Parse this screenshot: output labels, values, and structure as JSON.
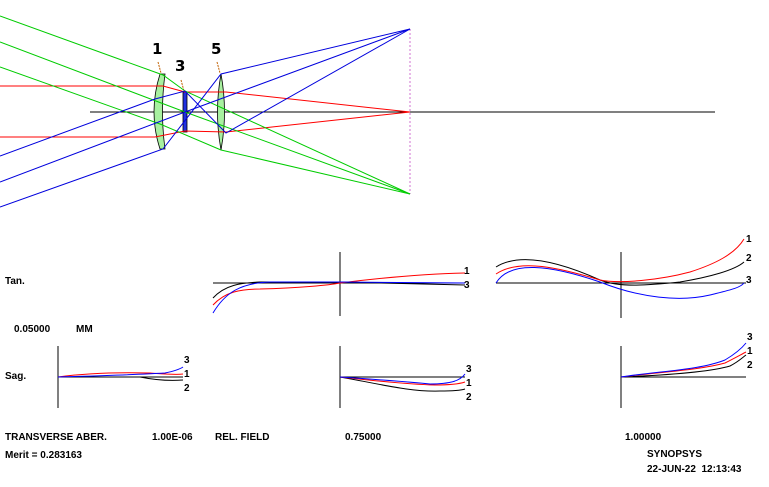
{
  "layout": {
    "surface_labels": [
      "1",
      "3",
      "5"
    ]
  },
  "aberrations": {
    "tan_label": "Tan.",
    "sag_label": "Sag.",
    "scale_value": "0.05000",
    "scale_unit": "MM",
    "curve_labels": [
      "1",
      "2",
      "3"
    ],
    "colors": {
      "curve_1": "#ff0000",
      "curve_2": "#000000",
      "curve_3": "#0000ff"
    }
  },
  "footer": {
    "title": "TRANSVERSE ABER.",
    "wavelength_value": "1.00E-06",
    "rel_field_label": "REL. FIELD",
    "field_1": "0.75000",
    "field_2": "1.00000",
    "merit": "Merit = 0.283163",
    "program": "SYNOPSYS",
    "timestamp": "22-JUN-22  12:13:43"
  }
}
